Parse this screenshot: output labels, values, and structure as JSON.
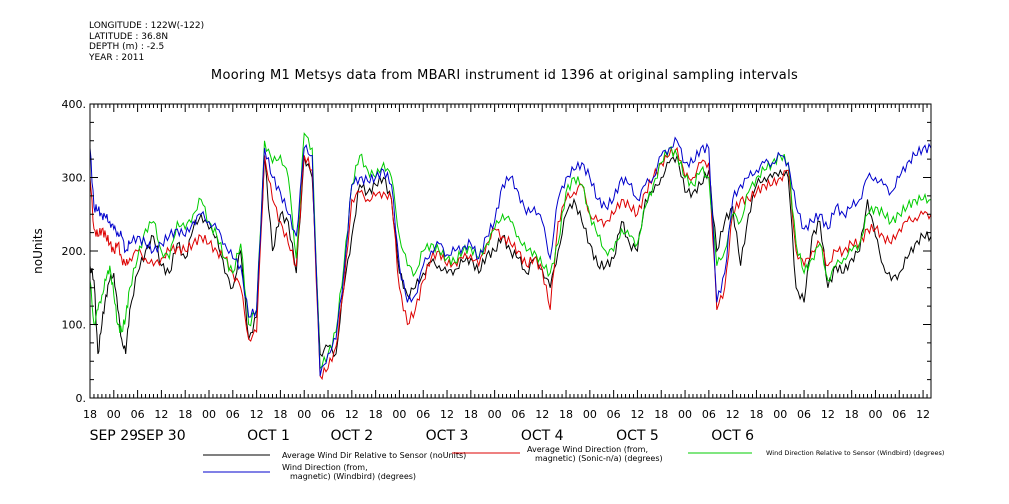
{
  "header": {
    "meta_lines": [
      "LONGITUDE : 122W(-122)",
      "LATITUDE : 36.8N",
      "DEPTH (m) : -2.5",
      "YEAR : 2011"
    ],
    "title": "Mooring M1 Metsys data from MBARI instrument id 1396 at original sampling intervals"
  },
  "chart_data": {
    "type": "line",
    "title": "Mooring M1 Metsys data from MBARI instrument id 1396 at original sampling intervals",
    "xlabel": "",
    "ylabel": "noUnits",
    "x_unit": "hours since 2011-09-28 18:00",
    "xlim": [
      0,
      212
    ],
    "ylim": [
      0,
      400
    ],
    "y_ticks": [
      0,
      100,
      200,
      300,
      400
    ],
    "y_tick_labels": [
      "0.",
      "100.",
      "200.",
      "300.",
      "400."
    ],
    "x_ticks": [
      0,
      6,
      12,
      18,
      24,
      30,
      36,
      42,
      48,
      54,
      60,
      66,
      72,
      78,
      84,
      90,
      96,
      102,
      108,
      114,
      120,
      126,
      132,
      138,
      144,
      150,
      156,
      162,
      168,
      174,
      180,
      186,
      192,
      198,
      204,
      210
    ],
    "x_tick_labels": [
      "18",
      "00",
      "06",
      "12",
      "18",
      "00",
      "06",
      "12",
      "18",
      "00",
      "06",
      "12",
      "18",
      "00",
      "06",
      "12",
      "18",
      "00",
      "06",
      "12",
      "18",
      "00",
      "06",
      "12",
      "18",
      "00",
      "06",
      "12",
      "18",
      "00",
      "06",
      "12",
      "18",
      "00",
      "06",
      "12"
    ],
    "date_labels": [
      {
        "x": 6,
        "text": "SEP 29"
      },
      {
        "x": 18,
        "text": "SEP 30"
      },
      {
        "x": 45,
        "text": "OCT  1"
      },
      {
        "x": 66,
        "text": "OCT  2"
      },
      {
        "x": 90,
        "text": "OCT  3"
      },
      {
        "x": 114,
        "text": "OCT  4"
      },
      {
        "x": 138,
        "text": "OCT  5"
      },
      {
        "x": 162,
        "text": "OCT  6"
      }
    ],
    "grid": false,
    "legend_position": "bottom",
    "series": [
      {
        "name": "Average Wind Dir Relative to Sensor (noUnits)",
        "color": "#000000",
        "x": [
          0,
          1,
          2,
          3,
          4,
          5,
          6,
          7,
          8,
          9,
          10,
          12,
          14,
          16,
          18,
          20,
          22,
          24,
          26,
          28,
          30,
          32,
          34,
          36,
          38,
          40,
          42,
          44,
          46,
          48,
          50,
          52,
          54,
          56,
          58,
          60,
          62,
          64,
          66,
          68,
          70,
          72,
          74,
          76,
          78,
          80,
          82,
          84,
          86,
          88,
          90,
          92,
          94,
          96,
          98,
          100,
          102,
          104,
          106,
          108,
          110,
          112,
          114,
          116,
          118,
          120,
          122,
          124,
          126,
          128,
          130,
          132,
          134,
          136,
          138,
          140,
          142,
          144,
          146,
          148,
          150,
          152,
          154,
          156,
          158,
          160,
          162,
          164,
          166,
          168,
          170,
          172,
          174,
          176,
          178,
          180,
          182,
          184,
          186,
          188,
          190,
          192,
          194,
          196,
          198,
          200,
          202,
          204,
          206,
          208,
          210,
          212
        ],
        "values": [
          180,
          160,
          60,
          100,
          140,
          160,
          170,
          120,
          80,
          60,
          120,
          170,
          200,
          220,
          180,
          170,
          210,
          190,
          230,
          250,
          230,
          220,
          170,
          150,
          200,
          80,
          110,
          330,
          200,
          250,
          240,
          170,
          330,
          300,
          60,
          70,
          60,
          150,
          220,
          290,
          280,
          290,
          300,
          270,
          170,
          140,
          150,
          170,
          185,
          180,
          170,
          175,
          185,
          190,
          170,
          195,
          200,
          220,
          200,
          190,
          170,
          190,
          175,
          150,
          200,
          250,
          270,
          240,
          210,
          180,
          180,
          190,
          240,
          210,
          200,
          270,
          280,
          300,
          320,
          330,
          280,
          280,
          290,
          310,
          200,
          240,
          260,
          180,
          250,
          290,
          300,
          300,
          310,
          300,
          150,
          130,
          220,
          240,
          150,
          180,
          170,
          190,
          200,
          270,
          220,
          180,
          160,
          170,
          190,
          210,
          220,
          220
        ]
      },
      {
        "name": "Average Wind Direction (from, magnetic) (Sonic-n/a) (degrees)",
        "color": "#dd0000",
        "x": [
          0,
          1,
          2,
          3,
          4,
          5,
          6,
          7,
          8,
          9,
          10,
          12,
          14,
          16,
          18,
          20,
          22,
          24,
          26,
          28,
          30,
          32,
          34,
          36,
          38,
          40,
          42,
          44,
          46,
          48,
          50,
          52,
          54,
          56,
          58,
          60,
          62,
          64,
          66,
          68,
          70,
          72,
          74,
          76,
          78,
          80,
          82,
          84,
          86,
          88,
          90,
          92,
          94,
          96,
          98,
          100,
          102,
          104,
          106,
          108,
          110,
          112,
          114,
          116,
          118,
          120,
          122,
          124,
          126,
          128,
          130,
          132,
          134,
          136,
          138,
          140,
          142,
          144,
          146,
          148,
          150,
          152,
          154,
          156,
          158,
          160,
          162,
          164,
          166,
          168,
          170,
          172,
          174,
          176,
          178,
          180,
          182,
          184,
          186,
          188,
          190,
          192,
          194,
          196,
          198,
          200,
          202,
          204,
          206,
          208,
          210,
          212
        ],
        "values": [
          300,
          230,
          220,
          230,
          220,
          210,
          200,
          210,
          190,
          180,
          190,
          200,
          190,
          180,
          190,
          200,
          205,
          200,
          210,
          220,
          210,
          200,
          190,
          170,
          150,
          80,
          90,
          330,
          270,
          240,
          210,
          180,
          330,
          310,
          30,
          40,
          70,
          150,
          270,
          280,
          270,
          275,
          280,
          270,
          150,
          100,
          120,
          160,
          190,
          200,
          180,
          185,
          190,
          195,
          180,
          210,
          230,
          220,
          210,
          200,
          180,
          190,
          175,
          120,
          240,
          270,
          280,
          290,
          250,
          240,
          240,
          250,
          270,
          260,
          250,
          280,
          300,
          320,
          330,
          340,
          300,
          300,
          320,
          320,
          120,
          150,
          250,
          270,
          270,
          280,
          290,
          290,
          300,
          310,
          200,
          180,
          200,
          210,
          180,
          200,
          200,
          210,
          210,
          230,
          230,
          220,
          210,
          230,
          240,
          245,
          250,
          250
        ]
      },
      {
        "name": "Wind Direction Relative to Sensor (Windbird) (degrees)",
        "color": "#00cc00",
        "x": [
          0,
          1,
          2,
          3,
          4,
          5,
          6,
          7,
          8,
          9,
          10,
          12,
          14,
          16,
          18,
          20,
          22,
          24,
          26,
          28,
          30,
          32,
          34,
          36,
          38,
          40,
          42,
          44,
          46,
          48,
          50,
          52,
          54,
          56,
          58,
          60,
          62,
          64,
          66,
          68,
          70,
          72,
          74,
          76,
          78,
          80,
          82,
          84,
          86,
          88,
          90,
          92,
          94,
          96,
          98,
          100,
          102,
          104,
          106,
          108,
          110,
          112,
          114,
          116,
          118,
          120,
          122,
          124,
          126,
          128,
          130,
          132,
          134,
          136,
          138,
          140,
          142,
          144,
          146,
          148,
          150,
          152,
          154,
          156,
          158,
          160,
          162,
          164,
          166,
          168,
          170,
          172,
          174,
          176,
          178,
          180,
          182,
          184,
          186,
          188,
          190,
          192,
          194,
          196,
          198,
          200,
          202,
          204,
          206,
          208,
          210,
          212
        ],
        "values": [
          160,
          100,
          120,
          140,
          160,
          180,
          140,
          100,
          90,
          110,
          150,
          190,
          230,
          240,
          200,
          190,
          240,
          230,
          250,
          270,
          240,
          220,
          190,
          170,
          210,
          100,
          120,
          350,
          320,
          330,
          300,
          190,
          360,
          340,
          40,
          60,
          90,
          180,
          290,
          330,
          310,
          300,
          320,
          300,
          220,
          180,
          170,
          200,
          210,
          200,
          190,
          185,
          200,
          205,
          190,
          210,
          230,
          250,
          240,
          220,
          200,
          200,
          180,
          170,
          210,
          280,
          300,
          290,
          250,
          220,
          200,
          200,
          230,
          220,
          210,
          260,
          290,
          320,
          340,
          330,
          300,
          290,
          310,
          300,
          180,
          200,
          250,
          240,
          280,
          300,
          310,
          320,
          330,
          320,
          210,
          170,
          190,
          210,
          160,
          180,
          190,
          200,
          210,
          250,
          260,
          250,
          240,
          250,
          260,
          270,
          270,
          270
        ]
      },
      {
        "name": "Wind Direction (from, magnetic) (Windbird) (degrees)",
        "color": "#0000cc",
        "x": [
          0,
          1,
          2,
          3,
          4,
          5,
          6,
          7,
          8,
          9,
          10,
          12,
          14,
          16,
          18,
          20,
          22,
          24,
          26,
          28,
          30,
          32,
          34,
          36,
          38,
          40,
          42,
          44,
          46,
          48,
          50,
          52,
          54,
          56,
          58,
          60,
          62,
          64,
          66,
          68,
          70,
          72,
          74,
          76,
          78,
          80,
          82,
          84,
          86,
          88,
          90,
          92,
          94,
          96,
          98,
          100,
          102,
          104,
          106,
          108,
          110,
          112,
          114,
          116,
          118,
          120,
          122,
          124,
          126,
          128,
          130,
          132,
          134,
          136,
          138,
          140,
          142,
          144,
          146,
          148,
          150,
          152,
          154,
          156,
          158,
          160,
          162,
          164,
          166,
          168,
          170,
          172,
          174,
          176,
          178,
          180,
          182,
          184,
          186,
          188,
          190,
          192,
          194,
          196,
          198,
          200,
          202,
          204,
          206,
          208,
          210,
          212
        ],
        "values": [
          340,
          260,
          255,
          250,
          245,
          240,
          230,
          225,
          220,
          200,
          210,
          220,
          210,
          200,
          210,
          220,
          230,
          220,
          240,
          250,
          240,
          230,
          210,
          190,
          180,
          110,
          120,
          340,
          300,
          280,
          250,
          220,
          340,
          330,
          30,
          60,
          80,
          170,
          290,
          300,
          295,
          300,
          310,
          290,
          180,
          130,
          140,
          180,
          200,
          210,
          195,
          200,
          205,
          210,
          190,
          220,
          240,
          290,
          300,
          280,
          250,
          260,
          240,
          190,
          270,
          300,
          310,
          320,
          300,
          270,
          260,
          270,
          300,
          290,
          270,
          290,
          300,
          330,
          340,
          350,
          320,
          320,
          340,
          340,
          130,
          170,
          270,
          290,
          300,
          310,
          320,
          320,
          330,
          320,
          260,
          230,
          240,
          250,
          230,
          260,
          250,
          260,
          270,
          300,
          300,
          290,
          280,
          300,
          320,
          330,
          340,
          340
        ]
      }
    ]
  }
}
